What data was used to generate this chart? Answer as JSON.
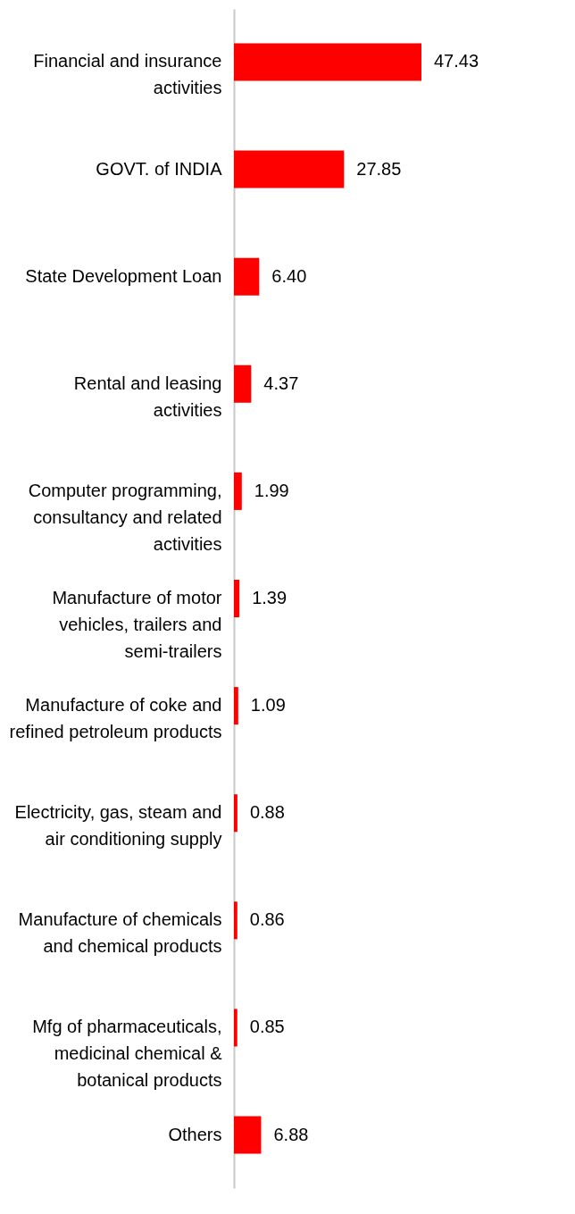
{
  "chart_data": {
    "type": "bar",
    "orientation": "horizontal",
    "categories": [
      "Financial and insurance activities",
      "GOVT. of INDIA",
      "State Development Loan",
      "Rental and leasing activities",
      "Computer programming, consultancy and related activities",
      "Manufacture of motor vehicles, trailers and semi-trailers",
      "Manufacture of coke and refined petroleum products",
      "Electricity, gas, steam and air conditioning supply",
      "Manufacture of chemicals and chemical products",
      "Mfg of pharmaceuticals, medicinal chemical & botanical products",
      "Others"
    ],
    "values": [
      47.43,
      27.85,
      6.4,
      4.37,
      1.99,
      1.39,
      1.09,
      0.88,
      0.86,
      0.85,
      6.88
    ],
    "value_labels": [
      "47.43",
      "27.85",
      "6.40",
      "4.37",
      "1.99",
      "1.39",
      "1.09",
      "0.88",
      "0.86",
      "0.85",
      "6.88"
    ],
    "color": "#ff0000"
  }
}
